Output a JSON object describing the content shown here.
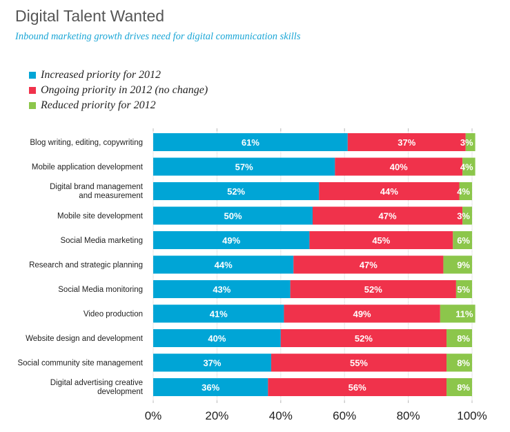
{
  "chart_data": {
    "type": "bar",
    "orientation": "horizontal",
    "stacked": true,
    "title": "Digital Talent Wanted",
    "subtitle": "Inbound marketing growth drives need for digital communication skills",
    "categories": [
      [
        "Blog writing, editing, copywriting"
      ],
      [
        "Mobile application development"
      ],
      [
        "Digital brand management",
        "and measurement"
      ],
      [
        "Mobile site development"
      ],
      [
        "Social Media marketing"
      ],
      [
        "Research and strategic planning"
      ],
      [
        "Social Media monitoring"
      ],
      [
        "Video production"
      ],
      [
        "Website design and development"
      ],
      [
        "Social community site management"
      ],
      [
        "Digital advertising creative",
        "development"
      ]
    ],
    "series": [
      {
        "name": "Increased priority for 2012",
        "color": "#00a5d6",
        "values": [
          61,
          57,
          52,
          50,
          49,
          44,
          43,
          41,
          40,
          37,
          36
        ]
      },
      {
        "name": "Ongoing priority in 2012 (no change)",
        "color": "#f0324b",
        "values": [
          37,
          40,
          44,
          47,
          45,
          47,
          52,
          49,
          52,
          55,
          56
        ]
      },
      {
        "name": "Reduced priority for 2012",
        "color": "#8cc64b",
        "values": [
          3,
          4,
          4,
          3,
          6,
          9,
          5,
          11,
          8,
          8,
          8
        ]
      }
    ],
    "xlim": [
      0,
      100
    ],
    "xticks": [
      "0%",
      "20%",
      "40%",
      "60%",
      "80%",
      "100%"
    ],
    "grid": true,
    "legend_position": "top-left"
  }
}
